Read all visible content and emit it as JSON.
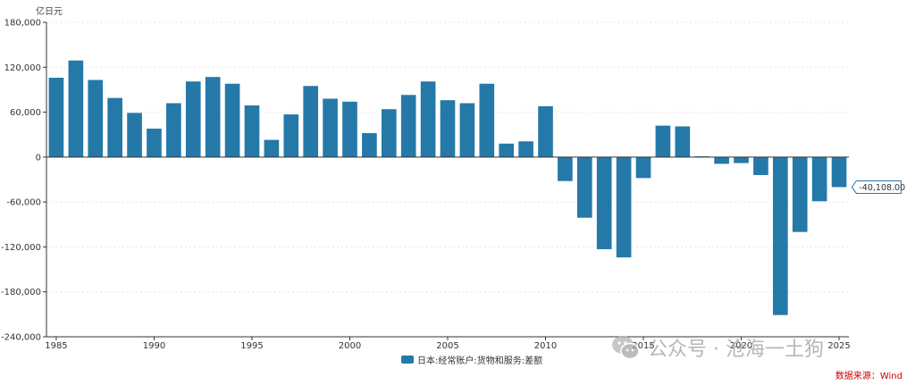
{
  "chart_data": {
    "type": "bar",
    "unit_label": "亿日元",
    "x": [
      1985,
      1986,
      1987,
      1988,
      1989,
      1990,
      1991,
      1992,
      1993,
      1994,
      1995,
      1996,
      1997,
      1998,
      1999,
      2000,
      2001,
      2002,
      2003,
      2004,
      2005,
      2006,
      2007,
      2008,
      2009,
      2010,
      2011,
      2012,
      2013,
      2014,
      2015,
      2016,
      2017,
      2018,
      2019,
      2020,
      2021,
      2022,
      2023,
      2024,
      2025
    ],
    "series": [
      {
        "name": "日本:经常账户:货物和服务:差额",
        "color": "#2479a8",
        "values": [
          106000,
          129000,
          103000,
          79000,
          59000,
          38000,
          72000,
          101000,
          107000,
          98000,
          69000,
          23000,
          57000,
          95000,
          78000,
          74000,
          32000,
          64000,
          83000,
          101000,
          76000,
          72000,
          98000,
          18000,
          21000,
          68000,
          -32000,
          -81000,
          -123000,
          -134000,
          -28000,
          42000,
          41000,
          1000,
          -9000,
          -8000,
          -24000,
          -211000,
          -100000,
          -59000,
          -40108
        ]
      }
    ],
    "x_ticks": [
      "1985",
      "1990",
      "1995",
      "2000",
      "2005",
      "2010",
      "2015",
      "2020",
      "2025"
    ],
    "y_ticks": [
      "180,000",
      "120,000",
      "60,000",
      "0",
      "-60,000",
      "-120,000",
      "-180,000",
      "-240,000"
    ],
    "ylim": [
      -240000,
      180000
    ],
    "grid": true,
    "legend_position": "bottom",
    "callout": {
      "year": 2025,
      "label": "-40,108.00"
    }
  },
  "watermark": {
    "text": "公众号 · 沧海一土狗",
    "icon": "wechat-icon"
  },
  "source_note": "数据来源：Wind"
}
